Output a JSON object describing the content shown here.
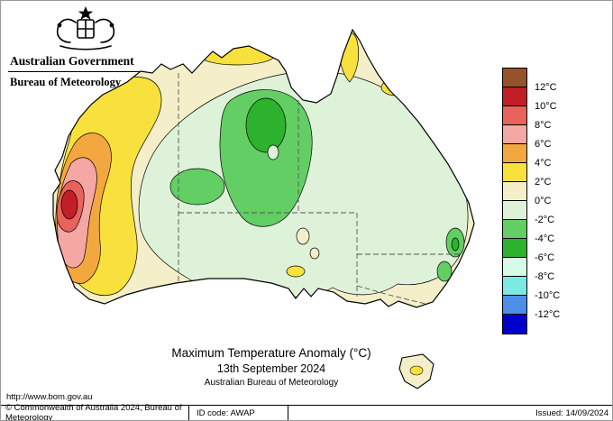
{
  "header": {
    "government": "Australian Government",
    "agency": "Bureau of Meteorology"
  },
  "map": {
    "title": "Maximum Temperature Anomaly (°C)",
    "date": "13th September 2024",
    "attribution": "Australian Bureau of Meteorology",
    "url": "http://www.bom.gov.au"
  },
  "legend": {
    "unit": "°C",
    "labels": [
      "12°C",
      "10°C",
      "8°C",
      "6°C",
      "4°C",
      "2°C",
      "0°C",
      "-2°C",
      "-4°C",
      "-6°C",
      "-8°C",
      "-10°C",
      "-12°C"
    ],
    "colors": [
      "#96522A",
      "#C21E25",
      "#E8635C",
      "#F4A7A3",
      "#F3A83F",
      "#F8E13C",
      "#F4EFC9",
      "#DEF2D9",
      "#63CE63",
      "#2DB22D",
      "#D6FBE6",
      "#7CE9E3",
      "#4D8FE6",
      "#0000CC"
    ]
  },
  "footer": {
    "copyright": "© Commonwealth of Australia 2024, Bureau of Meteorology",
    "id_code": "ID code: AWAP",
    "issued": "Issued: 14/09/2024"
  }
}
